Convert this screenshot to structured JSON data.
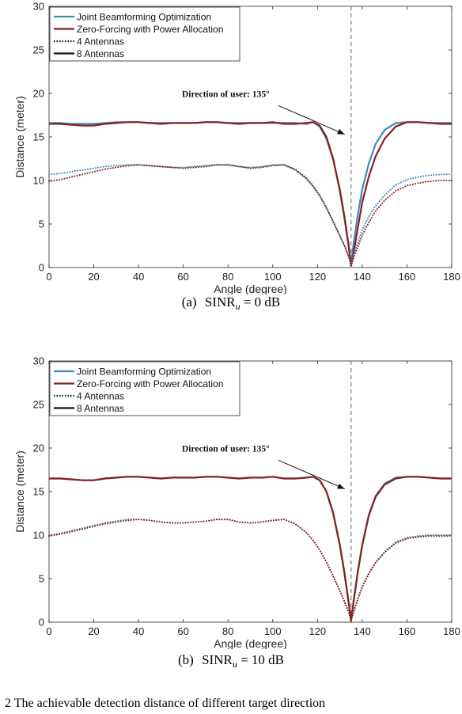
{
  "colors": {
    "joint": "#3b8bbf",
    "zf": "#8b1f1f",
    "vline": "#777777",
    "axis": "#262626"
  },
  "chart_data": [
    {
      "type": "line",
      "caption": {
        "label": "(a)",
        "metric": "SINR",
        "sub": "u",
        "value": "= 0 dB"
      },
      "xlabel": "Angle (degree)",
      "ylabel": "Distance (meter)",
      "xlim": [
        0,
        180
      ],
      "ylim": [
        0,
        30
      ],
      "xticks": [
        "0",
        "20",
        "40",
        "60",
        "80",
        "100",
        "120",
        "140",
        "160",
        "180"
      ],
      "yticks": [
        "0",
        "5",
        "10",
        "15",
        "20",
        "25",
        "30"
      ],
      "grid": false,
      "legend_position": "top-left",
      "legend": [
        "Joint Beamforming Optimization",
        "Zero-Forcing with Power Allocation",
        "4 Antennas",
        "8 Antennas"
      ],
      "annotation": {
        "text": "Direction of user: 135°",
        "x": 135
      },
      "x": [
        0,
        5,
        10,
        15,
        20,
        25,
        30,
        35,
        40,
        45,
        50,
        55,
        60,
        65,
        70,
        75,
        80,
        85,
        90,
        95,
        100,
        105,
        110,
        115,
        118,
        121,
        124,
        127,
        130,
        132,
        134,
        135,
        136,
        138,
        140,
        143,
        146,
        150,
        155,
        160,
        165,
        170,
        175,
        180
      ],
      "series": [
        {
          "name": "Joint Beamforming Optimization",
          "group": "8 Antennas",
          "values": [
            16.6,
            16.6,
            16.5,
            16.5,
            16.5,
            16.6,
            16.7,
            16.7,
            16.7,
            16.6,
            16.6,
            16.6,
            16.6,
            16.6,
            16.7,
            16.7,
            16.6,
            16.6,
            16.6,
            16.6,
            16.6,
            16.6,
            16.6,
            16.5,
            16.7,
            16.2,
            14.8,
            12.4,
            9.0,
            6.0,
            2.5,
            0.3,
            2.5,
            6.0,
            9.0,
            12.0,
            14.2,
            15.8,
            16.6,
            16.7,
            16.7,
            16.6,
            16.6,
            16.6
          ]
        },
        {
          "name": "Zero-Forcing with Power Allocation",
          "group": "8 Antennas",
          "values": [
            16.5,
            16.5,
            16.4,
            16.3,
            16.3,
            16.5,
            16.6,
            16.7,
            16.7,
            16.6,
            16.5,
            16.6,
            16.6,
            16.6,
            16.7,
            16.7,
            16.6,
            16.5,
            16.6,
            16.6,
            16.7,
            16.5,
            16.5,
            16.6,
            16.7,
            16.3,
            15.0,
            12.5,
            8.8,
            5.8,
            2.3,
            0.2,
            1.5,
            4.5,
            7.5,
            10.5,
            12.8,
            14.8,
            16.2,
            16.7,
            16.7,
            16.6,
            16.5,
            16.5
          ]
        },
        {
          "name": "Joint Beamforming Optimization",
          "group": "4 Antennas",
          "values": [
            10.7,
            10.8,
            11.0,
            11.2,
            11.4,
            11.6,
            11.7,
            11.8,
            11.8,
            11.7,
            11.6,
            11.5,
            11.5,
            11.6,
            11.7,
            11.8,
            11.8,
            11.6,
            11.5,
            11.6,
            11.8,
            11.8,
            11.2,
            10.2,
            9.3,
            8.2,
            6.8,
            5.3,
            3.7,
            2.6,
            1.3,
            0.3,
            1.4,
            2.9,
            4.3,
            5.9,
            7.1,
            8.3,
            9.5,
            10.1,
            10.4,
            10.6,
            10.7,
            10.7
          ]
        },
        {
          "name": "Zero-Forcing with Power Allocation",
          "group": "4 Antennas",
          "values": [
            9.9,
            10.1,
            10.4,
            10.7,
            11.0,
            11.3,
            11.5,
            11.7,
            11.8,
            11.7,
            11.6,
            11.5,
            11.4,
            11.5,
            11.6,
            11.8,
            11.8,
            11.6,
            11.4,
            11.5,
            11.7,
            11.8,
            11.3,
            10.3,
            9.4,
            8.3,
            6.9,
            5.3,
            3.6,
            2.5,
            1.2,
            0.2,
            1.0,
            2.4,
            3.7,
            5.2,
            6.5,
            7.7,
            8.8,
            9.4,
            9.7,
            9.9,
            10.0,
            10.0
          ]
        }
      ]
    },
    {
      "type": "line",
      "caption": {
        "label": "(b)",
        "metric": "SINR",
        "sub": "u",
        "value": "= 10 dB"
      },
      "xlabel": "Angle (degree)",
      "ylabel": "Distance (meter)",
      "xlim": [
        0,
        180
      ],
      "ylim": [
        0,
        30
      ],
      "xticks": [
        "0",
        "20",
        "40",
        "60",
        "80",
        "100",
        "120",
        "140",
        "160",
        "180"
      ],
      "yticks": [
        "0",
        "5",
        "10",
        "15",
        "20",
        "25",
        "30"
      ],
      "grid": false,
      "legend_position": "top-left",
      "legend": [
        "Joint Beamforming Optimization",
        "Zero-Forcing with Power Allocation",
        "4 Antennas",
        "8 Antennas"
      ],
      "annotation": {
        "text": "Direction of user: 135°",
        "x": 135
      },
      "x": [
        0,
        5,
        10,
        15,
        20,
        25,
        30,
        35,
        40,
        45,
        50,
        55,
        60,
        65,
        70,
        75,
        80,
        85,
        90,
        95,
        100,
        105,
        110,
        115,
        118,
        121,
        124,
        127,
        130,
        132,
        134,
        135,
        136,
        138,
        140,
        143,
        146,
        150,
        155,
        160,
        165,
        170,
        175,
        180
      ],
      "series": [
        {
          "name": "Joint Beamforming Optimization",
          "group": "8 Antennas",
          "values": [
            16.5,
            16.5,
            16.4,
            16.3,
            16.3,
            16.5,
            16.6,
            16.7,
            16.7,
            16.6,
            16.5,
            16.6,
            16.6,
            16.6,
            16.7,
            16.7,
            16.6,
            16.5,
            16.6,
            16.6,
            16.7,
            16.5,
            16.5,
            16.6,
            16.7,
            16.3,
            15.0,
            12.6,
            8.9,
            5.8,
            2.2,
            0.2,
            2.2,
            5.8,
            8.9,
            12.4,
            14.5,
            15.9,
            16.6,
            16.7,
            16.7,
            16.6,
            16.5,
            16.5
          ]
        },
        {
          "name": "Zero-Forcing with Power Allocation",
          "group": "8 Antennas",
          "values": [
            16.5,
            16.5,
            16.4,
            16.3,
            16.3,
            16.5,
            16.6,
            16.7,
            16.7,
            16.6,
            16.5,
            16.6,
            16.6,
            16.6,
            16.7,
            16.7,
            16.6,
            16.5,
            16.6,
            16.6,
            16.7,
            16.5,
            16.5,
            16.6,
            16.7,
            16.3,
            15.0,
            12.5,
            8.8,
            5.7,
            2.1,
            0.1,
            2.1,
            5.7,
            8.8,
            12.3,
            14.4,
            15.8,
            16.5,
            16.7,
            16.7,
            16.6,
            16.5,
            16.5
          ]
        },
        {
          "name": "Joint Beamforming Optimization",
          "group": "4 Antennas",
          "values": [
            10.0,
            10.2,
            10.5,
            10.8,
            11.1,
            11.4,
            11.6,
            11.8,
            11.8,
            11.7,
            11.5,
            11.4,
            11.4,
            11.5,
            11.6,
            11.8,
            11.8,
            11.5,
            11.4,
            11.5,
            11.7,
            11.8,
            11.3,
            10.3,
            9.4,
            8.3,
            6.9,
            5.3,
            3.6,
            2.4,
            1.1,
            0.2,
            1.1,
            2.7,
            4.1,
            5.7,
            6.9,
            8.1,
            9.2,
            9.7,
            9.9,
            10.0,
            10.0,
            10.0
          ]
        },
        {
          "name": "Zero-Forcing with Power Allocation",
          "group": "4 Antennas",
          "values": [
            9.9,
            10.1,
            10.4,
            10.7,
            11.0,
            11.3,
            11.5,
            11.7,
            11.8,
            11.7,
            11.5,
            11.4,
            11.4,
            11.5,
            11.6,
            11.8,
            11.8,
            11.5,
            11.4,
            11.5,
            11.7,
            11.8,
            11.3,
            10.3,
            9.4,
            8.3,
            6.9,
            5.3,
            3.6,
            2.4,
            1.1,
            0.2,
            1.0,
            2.6,
            4.0,
            5.6,
            6.8,
            8.0,
            9.1,
            9.6,
            9.8,
            9.9,
            9.9,
            9.9
          ]
        }
      ]
    }
  ],
  "bottom_text": "2   The achievable detection distance of different target direction"
}
